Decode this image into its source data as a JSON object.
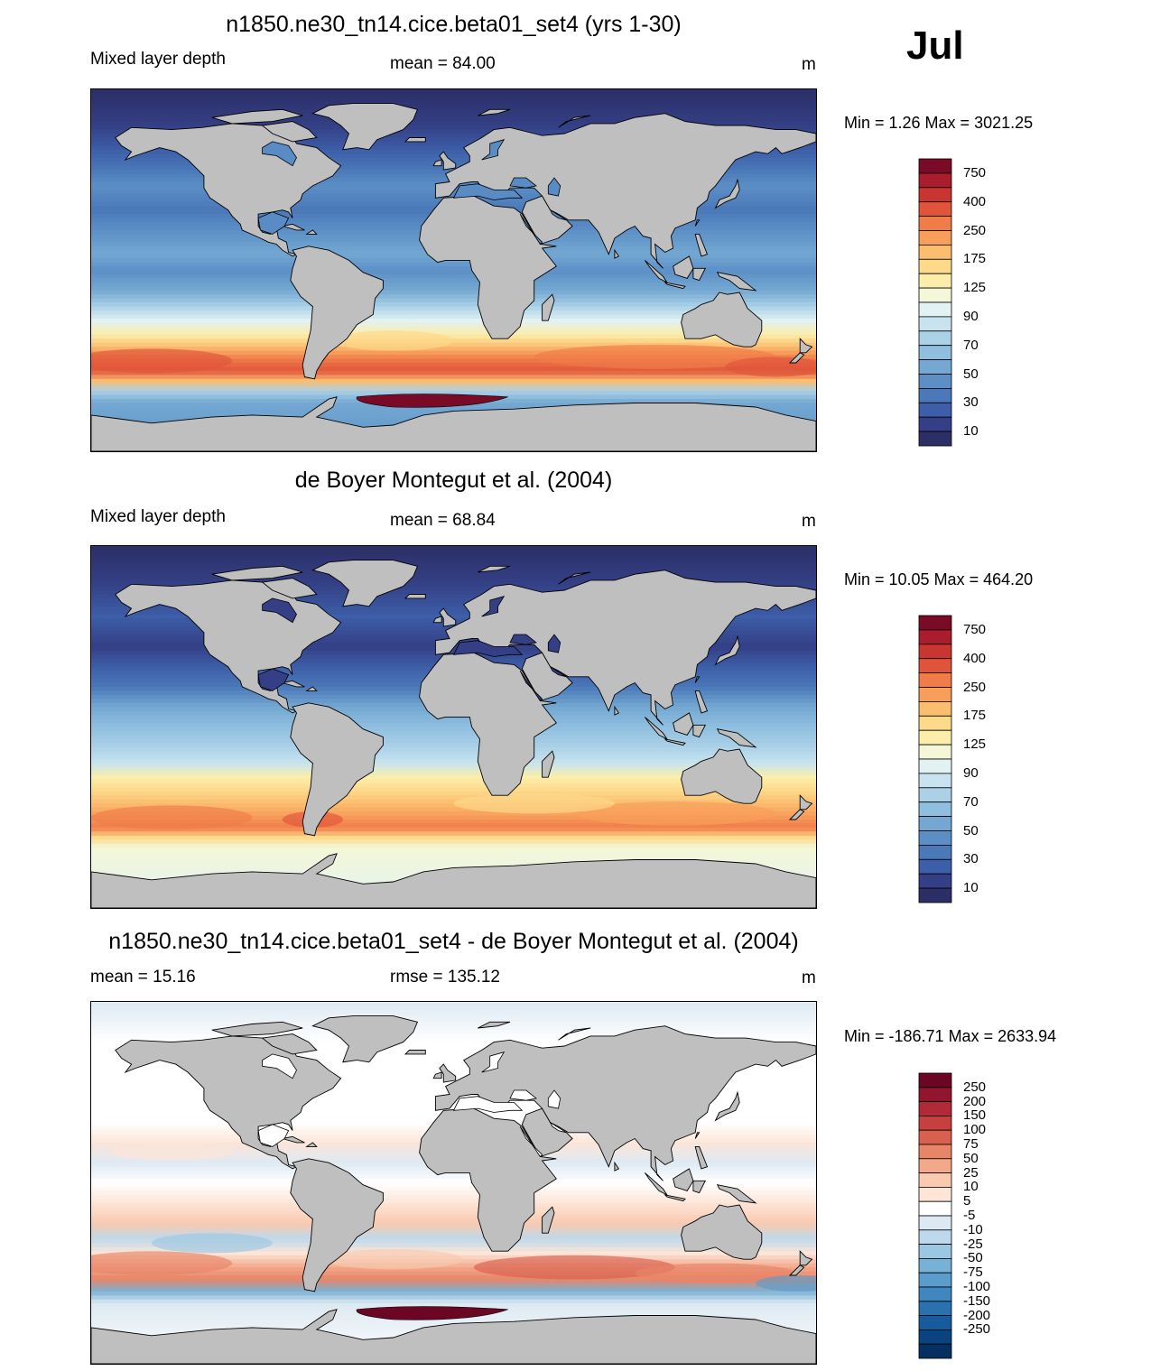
{
  "month": "Jul",
  "panels": [
    {
      "title": "n1850.ne30_tn14.cice.beta01_set4 (yrs 1-30)",
      "left": "Mixed layer depth",
      "center": "mean =  84.00",
      "unit": "m",
      "minmax": "Min =    1.26 Max = 3021.25",
      "colorbar": {
        "colors": [
          "#2b2f66",
          "#343f85",
          "#3d5ea8",
          "#4a78b8",
          "#5c8fc6",
          "#74a8d2",
          "#8fbedf",
          "#abd1e7",
          "#c8e3ef",
          "#e2f1f2",
          "#f4f8d8",
          "#fbeeaa",
          "#fdd98a",
          "#fbbd70",
          "#f79e5a",
          "#f07c48",
          "#e0553a",
          "#c93530",
          "#a91d2c",
          "#7a0b26"
        ],
        "labels": [
          "750",
          "400",
          "250",
          "175",
          "125",
          "90",
          "70",
          "50",
          "30",
          "10"
        ]
      }
    },
    {
      "title": "de Boyer Montegut et al. (2004)",
      "left": "Mixed layer depth",
      "center": "mean =  68.84",
      "unit": "m",
      "minmax": "Min =  10.05 Max = 464.20",
      "colorbar": {
        "colors": [
          "#2b2f66",
          "#343f85",
          "#3d5ea8",
          "#4a78b8",
          "#5c8fc6",
          "#74a8d2",
          "#8fbedf",
          "#abd1e7",
          "#c8e3ef",
          "#e2f1f2",
          "#f4f8d8",
          "#fbeeaa",
          "#fdd98a",
          "#fbbd70",
          "#f79e5a",
          "#f07c48",
          "#e0553a",
          "#c93530",
          "#a91d2c",
          "#7a0b26"
        ],
        "labels": [
          "750",
          "400",
          "250",
          "175",
          "125",
          "90",
          "70",
          "50",
          "30",
          "10"
        ]
      }
    },
    {
      "title": "n1850.ne30_tn14.cice.beta01_set4 - de Boyer Montegut et al. (2004)",
      "left": "mean =  15.16",
      "center": "rmse = 135.12",
      "unit": "m",
      "minmax": "Min = -186.71 Max = 2633.94",
      "colorbar": {
        "colors": [
          "#05305f",
          "#0b437f",
          "#185b9c",
          "#2a71b0",
          "#3f87bf",
          "#5a9ccb",
          "#78b1d6",
          "#9cc7e2",
          "#bed9eb",
          "#dde9f2",
          "#ffffff",
          "#fde5d8",
          "#f9c9b0",
          "#f3a88a",
          "#e88467",
          "#d9604f",
          "#c5403f",
          "#b02a37",
          "#921530",
          "#6b0625"
        ],
        "labels": [
          "250",
          "200",
          "150",
          "100",
          "75",
          "50",
          "25",
          "10",
          "5",
          "-5",
          "-10",
          "-25",
          "-50",
          "-75",
          "-100",
          "-150",
          "-200",
          "-250"
        ]
      }
    }
  ]
}
